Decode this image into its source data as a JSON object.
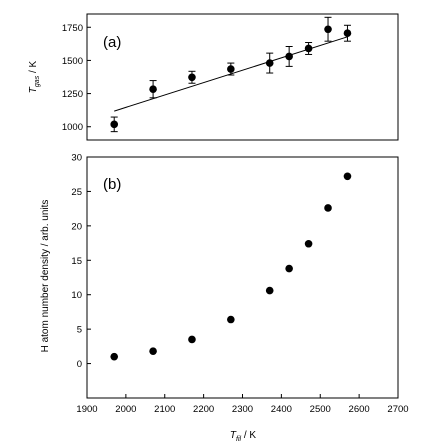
{
  "chart_data": [
    {
      "type": "scatter",
      "panel_label": "(a)",
      "ylabel": "T",
      "ylabel_sub": "gas",
      "ylabel_unit": " / K",
      "xlim": [
        1900,
        2700
      ],
      "ylim": [
        900,
        1850
      ],
      "yticks": [
        1000,
        1250,
        1500,
        1750
      ],
      "grid": false,
      "fit_line": {
        "x": [
          1970,
          2570
        ],
        "y": [
          1118,
          1678
        ]
      },
      "series": [
        {
          "x": [
            1970,
            2070,
            2170,
            2270,
            2370,
            2420,
            2470,
            2520,
            2570
          ],
          "y": [
            1018,
            1283,
            1373,
            1435,
            1480,
            1530,
            1590,
            1735,
            1705
          ],
          "err": [
            55,
            65,
            45,
            45,
            75,
            75,
            45,
            90,
            60
          ]
        }
      ]
    },
    {
      "type": "scatter",
      "panel_label": "(b)",
      "xlabel": "T",
      "xlabel_sub": "fil",
      "xlabel_unit": " / K",
      "ylabel": "H atom number density / arb. units",
      "xlim": [
        1900,
        2700
      ],
      "ylim": [
        -5,
        30
      ],
      "xticks": [
        1900,
        2000,
        2100,
        2200,
        2300,
        2400,
        2500,
        2600,
        2700
      ],
      "yticks": [
        0,
        5,
        10,
        15,
        20,
        25,
        30
      ],
      "grid": false,
      "series": [
        {
          "x": [
            1970,
            2070,
            2170,
            2270,
            2370,
            2420,
            2470,
            2520,
            2570
          ],
          "y": [
            1.0,
            1.8,
            3.5,
            6.4,
            10.6,
            13.8,
            17.4,
            22.6,
            27.2
          ]
        }
      ]
    }
  ]
}
